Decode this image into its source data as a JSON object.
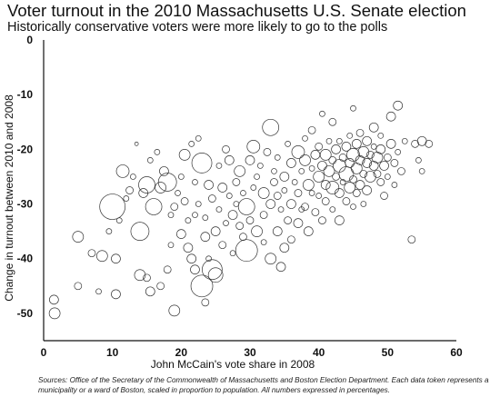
{
  "title": "Voter turnout in the 2010 Massachusetts U.S. Senate election",
  "subtitle": "Historically conservative voters were more likely to go to the polls",
  "source_note": "Sources: Office of the Secretary of the Commonwealth of Massachusetts and Boston Election Department. Each data token represents a municipality or a ward of Boston, scaled in proportion to population. All numbers expressed in percentages.",
  "chart_data": {
    "type": "scatter",
    "title": "Voter turnout in the 2010 Massachusetts U.S. Senate election",
    "subtitle": "Historically conservative voters were more likely to go to the polls",
    "xlabel": "John McCain's vote share in 2008",
    "ylabel": "Change in turnout between 2010 and 2008",
    "xlim": [
      0,
      60
    ],
    "ylim": [
      -55,
      0
    ],
    "xticks": [
      0,
      10,
      20,
      30,
      40,
      50,
      60
    ],
    "yticks": [
      0,
      -10,
      -20,
      -30,
      -40,
      -50
    ],
    "grid": false,
    "point_style": "hollow circles, size proportional to population",
    "points": [
      [
        1.5,
        -47.5,
        5
      ],
      [
        1.6,
        -50,
        6
      ],
      [
        5,
        -36,
        6
      ],
      [
        5,
        -45,
        4
      ],
      [
        7,
        -39,
        4
      ],
      [
        8,
        -46,
        3
      ],
      [
        8.5,
        -39.5,
        6
      ],
      [
        9.5,
        -35,
        3
      ],
      [
        10,
        -30.5,
        14
      ],
      [
        10.5,
        -46.5,
        5
      ],
      [
        10.5,
        -40,
        5
      ],
      [
        11,
        -33,
        3
      ],
      [
        11.5,
        -24,
        7
      ],
      [
        12,
        -29,
        3
      ],
      [
        12.5,
        -27.5,
        4
      ],
      [
        13,
        -25,
        3
      ],
      [
        13.5,
        -19,
        2
      ],
      [
        14,
        -35,
        10
      ],
      [
        14,
        -43,
        6
      ],
      [
        14.5,
        -28,
        5
      ],
      [
        15,
        -26.5,
        9
      ],
      [
        15,
        -43.5,
        4
      ],
      [
        15.5,
        -46,
        5
      ],
      [
        15.5,
        -22,
        3
      ],
      [
        16,
        -30.5,
        9
      ],
      [
        16.5,
        -20.5,
        3
      ],
      [
        17,
        -27,
        6
      ],
      [
        17,
        -45,
        4
      ],
      [
        17.5,
        -24,
        5
      ],
      [
        18,
        -26,
        10
      ],
      [
        18,
        -42,
        4
      ],
      [
        18.5,
        -32,
        3
      ],
      [
        18.5,
        -37.5,
        3
      ],
      [
        19,
        -49.5,
        6
      ],
      [
        19,
        -30.5,
        4
      ],
      [
        19.5,
        -28,
        3
      ],
      [
        20,
        -35.5,
        5
      ],
      [
        20,
        -25,
        3
      ],
      [
        20.5,
        -21,
        6
      ],
      [
        20.5,
        -29.5,
        4
      ],
      [
        21,
        -33,
        3
      ],
      [
        21,
        -38,
        5
      ],
      [
        21.5,
        -40,
        5
      ],
      [
        21.5,
        -19,
        3
      ],
      [
        22,
        -32,
        3
      ],
      [
        22,
        -42,
        5
      ],
      [
        22,
        -26,
        3
      ],
      [
        22.5,
        -18,
        3
      ],
      [
        22.5,
        -30,
        3
      ],
      [
        23,
        -45,
        12
      ],
      [
        23,
        -22.5,
        11
      ],
      [
        23.5,
        -32.5,
        3
      ],
      [
        23.5,
        -36,
        5
      ],
      [
        23.5,
        -48,
        4
      ],
      [
        24,
        -40,
        3
      ],
      [
        24,
        -26.5,
        5
      ],
      [
        24.5,
        -42,
        11
      ],
      [
        24.5,
        -29,
        4
      ],
      [
        25,
        -43,
        8
      ],
      [
        25,
        -35,
        5
      ],
      [
        25.5,
        -31,
        3
      ],
      [
        25.5,
        -23,
        3
      ],
      [
        26,
        -37.5,
        4
      ],
      [
        26,
        -27,
        5
      ],
      [
        26.5,
        -33.5,
        3
      ],
      [
        26.5,
        -20,
        4
      ],
      [
        27,
        -28.5,
        3
      ],
      [
        27,
        -22,
        5
      ],
      [
        27.5,
        -32,
        5
      ],
      [
        27.5,
        -39,
        3
      ],
      [
        28,
        -30,
        3
      ],
      [
        28,
        -26,
        4
      ],
      [
        28.5,
        -24,
        6
      ],
      [
        28.5,
        -34,
        4
      ],
      [
        29,
        -28,
        3
      ],
      [
        29,
        -36,
        4
      ],
      [
        29.5,
        -38.5,
        12
      ],
      [
        29.5,
        -30.5,
        9
      ],
      [
        30,
        -22,
        5
      ],
      [
        30,
        -33,
        4
      ],
      [
        30.5,
        -19.5,
        7
      ],
      [
        30.5,
        -27,
        3
      ],
      [
        31,
        -35,
        6
      ],
      [
        31,
        -25,
        3
      ],
      [
        31.5,
        -23,
        3
      ],
      [
        32,
        -28,
        6
      ],
      [
        32,
        -37,
        3
      ],
      [
        32,
        -32,
        4
      ],
      [
        32.5,
        -20.5,
        4
      ],
      [
        33,
        -16,
        9
      ],
      [
        33,
        -30,
        5
      ],
      [
        33,
        -40,
        6
      ],
      [
        33.5,
        -26,
        4
      ],
      [
        33.5,
        -24,
        3
      ],
      [
        34,
        -35,
        5
      ],
      [
        34,
        -21.5,
        3
      ],
      [
        34,
        -28.5,
        4
      ],
      [
        34.5,
        -31,
        3
      ],
      [
        34.5,
        -41.5,
        5
      ],
      [
        35,
        -25,
        5
      ],
      [
        35,
        -38,
        5
      ],
      [
        35,
        -27.5,
        3
      ],
      [
        35.5,
        -33,
        4
      ],
      [
        35.5,
        -19,
        3
      ],
      [
        36,
        -30,
        5
      ],
      [
        36,
        -22.5,
        5
      ],
      [
        36,
        -36.5,
        4
      ],
      [
        36.5,
        -26,
        3
      ],
      [
        37,
        -20.5,
        7
      ],
      [
        37,
        -28,
        4
      ],
      [
        37,
        -33.5,
        5
      ],
      [
        37.5,
        -24,
        3
      ],
      [
        37.5,
        -31,
        3
      ],
      [
        38,
        -22,
        6
      ],
      [
        38,
        -30.5,
        4
      ],
      [
        38,
        -18,
        3
      ],
      [
        38.5,
        -26.5,
        6
      ],
      [
        38.5,
        -35,
        5
      ],
      [
        39,
        -23.5,
        3
      ],
      [
        39,
        -28,
        3
      ],
      [
        39,
        -16.5,
        4
      ],
      [
        39.5,
        -21,
        5
      ],
      [
        39.5,
        -31.5,
        4
      ],
      [
        40,
        -25,
        6
      ],
      [
        40,
        -19.5,
        4
      ],
      [
        40,
        -28.5,
        3
      ],
      [
        40.5,
        -23,
        5
      ],
      [
        40.5,
        -33,
        4
      ],
      [
        40.5,
        -13.5,
        3
      ],
      [
        41,
        -26.5,
        5
      ],
      [
        41,
        -21,
        6
      ],
      [
        41,
        -29.5,
        4
      ],
      [
        41.5,
        -18.5,
        3
      ],
      [
        41.5,
        -24,
        6
      ],
      [
        42,
        -27,
        7
      ],
      [
        42,
        -22,
        4
      ],
      [
        42,
        -31,
        3
      ],
      [
        42,
        -15,
        4
      ],
      [
        42.5,
        -25,
        4
      ],
      [
        42.5,
        -20,
        5
      ],
      [
        43,
        -28,
        5
      ],
      [
        43,
        -23,
        7
      ],
      [
        43,
        -18.5,
        3
      ],
      [
        43,
        -33,
        5
      ],
      [
        43.5,
        -21.5,
        4
      ],
      [
        43.5,
        -26,
        3
      ],
      [
        44,
        -24.5,
        8
      ],
      [
        44,
        -19.5,
        5
      ],
      [
        44,
        -29.5,
        4
      ],
      [
        44.5,
        -22.5,
        5
      ],
      [
        44.5,
        -27,
        6
      ],
      [
        44.5,
        -17.5,
        3
      ],
      [
        45,
        -21,
        7
      ],
      [
        45,
        -25.5,
        4
      ],
      [
        45,
        -30.5,
        3
      ],
      [
        45,
        -12.5,
        3
      ],
      [
        45.5,
        -23.5,
        6
      ],
      [
        45.5,
        -19,
        5
      ],
      [
        45.5,
        -28,
        4
      ],
      [
        46,
        -22,
        5
      ],
      [
        46,
        -26.5,
        5
      ],
      [
        46,
        -17,
        4
      ],
      [
        46.5,
        -20.5,
        6
      ],
      [
        46.5,
        -24.5,
        4
      ],
      [
        46.5,
        -30,
        3
      ],
      [
        47,
        -22.5,
        5
      ],
      [
        47,
        -27.5,
        5
      ],
      [
        47,
        -18.5,
        5
      ],
      [
        47.5,
        -21,
        4
      ],
      [
        47.5,
        -25,
        6
      ],
      [
        48,
        -23,
        5
      ],
      [
        48,
        -19.5,
        3
      ],
      [
        48,
        -16,
        5
      ],
      [
        48.5,
        -24.5,
        4
      ],
      [
        48.5,
        -21.5,
        6
      ],
      [
        49,
        -26,
        4
      ],
      [
        49,
        -20,
        5
      ],
      [
        49,
        -17.5,
        3
      ],
      [
        49.5,
        -23,
        5
      ],
      [
        49.5,
        -28.5,
        4
      ],
      [
        50,
        -21.5,
        4
      ],
      [
        50,
        -25,
        3
      ],
      [
        50.5,
        -19,
        5
      ],
      [
        50.5,
        -14,
        5
      ],
      [
        51,
        -22.5,
        4
      ],
      [
        51,
        -26.5,
        3
      ],
      [
        51.5,
        -12,
        5
      ],
      [
        51.5,
        -20.5,
        3
      ],
      [
        52,
        -24,
        4
      ],
      [
        52.5,
        -18.5,
        3
      ],
      [
        53.5,
        -36.5,
        4
      ],
      [
        54,
        -19,
        4
      ],
      [
        54.5,
        -22,
        3
      ],
      [
        55,
        -18.5,
        5
      ],
      [
        55,
        -24,
        3
      ],
      [
        56,
        -19,
        4
      ]
    ]
  }
}
